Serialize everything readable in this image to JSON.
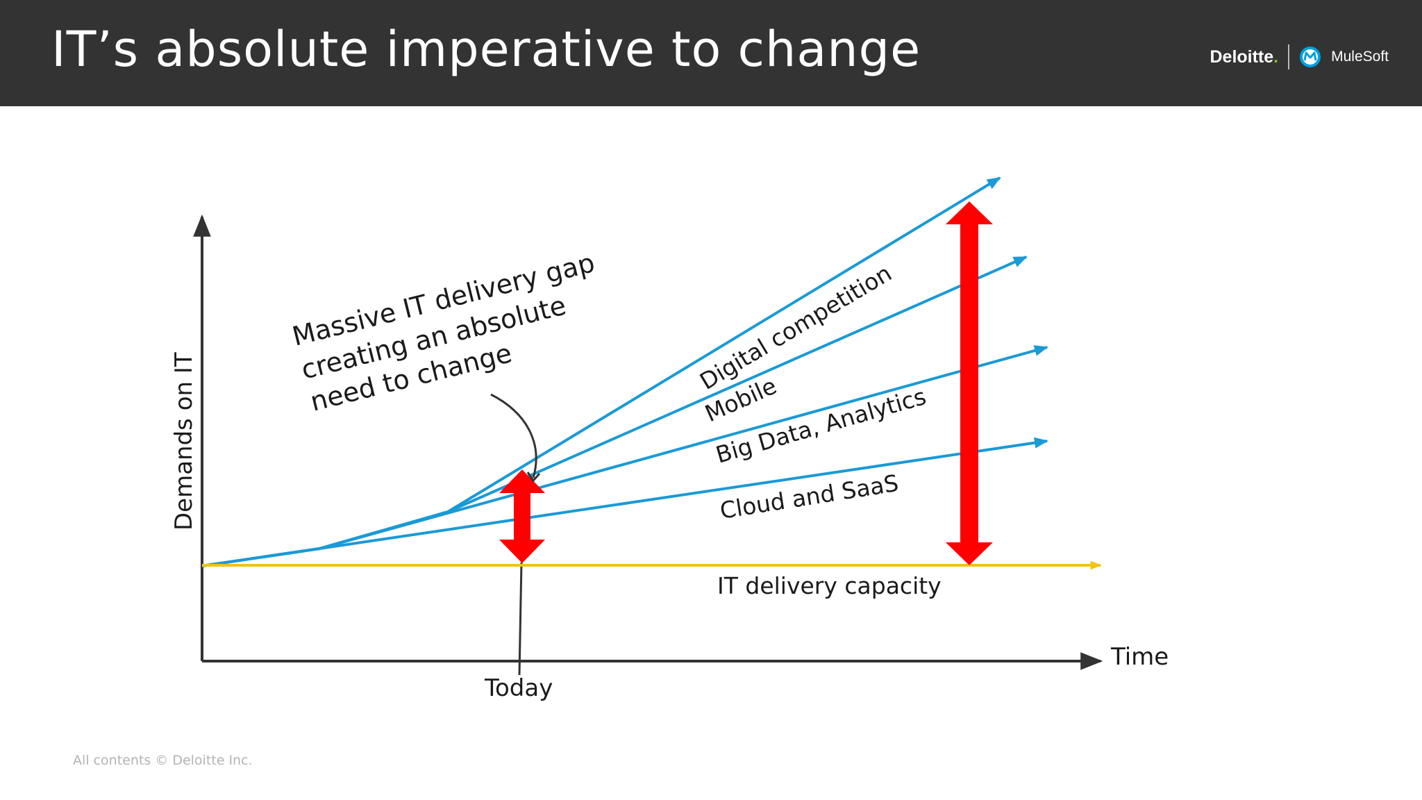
{
  "slide": {
    "title": "IT’s absolute imperative to change",
    "footer": "All contents © Deloitte Inc."
  },
  "logos": {
    "deloitte": "Deloitte",
    "deloitte_dot": ".",
    "mulesoft": "MuleSoft"
  },
  "diagram": {
    "y_axis_label": "Demands on IT",
    "x_axis_label": "Time",
    "today_label": "Today",
    "capacity_label": "IT delivery capacity",
    "demand_labels": {
      "digital": "Digital competition",
      "mobile": "Mobile",
      "bigdata": "Big Data, Analytics",
      "cloud": "Cloud and SaaS"
    },
    "callout_lines": [
      "Massive IT delivery gap",
      "creating an absolute",
      "need to change"
    ],
    "colors": {
      "demand_line": "#1a9ad6",
      "capacity_line": "#f2c40f",
      "gap_arrow": "#ff0000",
      "axis": "#333333"
    }
  }
}
